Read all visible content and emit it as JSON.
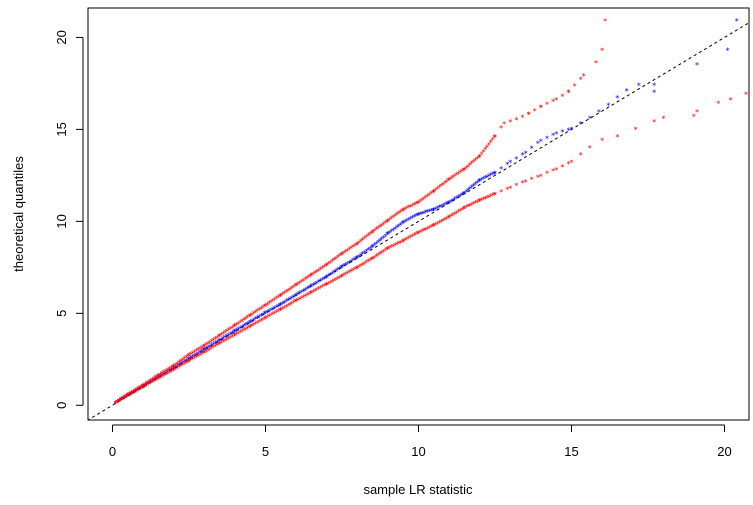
{
  "chart_data": {
    "type": "scatter",
    "title": "",
    "xlabel": "sample LR statistic",
    "ylabel": "theoretical quantiles",
    "xlim": [
      -0.8,
      20.8
    ],
    "ylim": [
      -0.8,
      21.6
    ],
    "xticks": [
      "0",
      "5",
      "10",
      "15",
      "20"
    ],
    "yticks": [
      "0",
      "5",
      "10",
      "15",
      "20"
    ],
    "marker": "*",
    "grid": false,
    "reference_line": {
      "style": "dashed",
      "color": "#000000",
      "from": [
        -1,
        -1
      ],
      "to": [
        21,
        21
      ]
    },
    "colors": {
      "blue": "#0000ff",
      "red": "#ff0000"
    },
    "series": [
      {
        "color": "#0000ff",
        "x": [
          0.1,
          0.5,
          1,
          1.5,
          2,
          2.5,
          3,
          3.5,
          4,
          4.5,
          5,
          5.5,
          6,
          6.5,
          7,
          7.5,
          8,
          8.5,
          9,
          9.5,
          10,
          10.5,
          11,
          11.5,
          12,
          12.5,
          13,
          13.5,
          14,
          14.5,
          15,
          15.3,
          15.6,
          15.9,
          16.2,
          16.5,
          16.8,
          17.2,
          17.7,
          17.7,
          19.1,
          20.1,
          20.4
        ],
        "y": [
          0.1,
          0.5,
          1,
          1.5,
          2,
          2.5,
          3,
          3.5,
          4,
          4.5,
          5,
          5.45,
          5.95,
          6.45,
          6.95,
          7.5,
          8.0,
          8.6,
          9.3,
          9.9,
          10.35,
          10.6,
          11.0,
          11.5,
          12.2,
          12.6,
          13.2,
          13.7,
          14.35,
          14.75,
          15.0,
          15.3,
          15.6,
          15.95,
          16.3,
          16.7,
          17.1,
          17.4,
          17.0,
          17.4,
          18.5,
          19.3,
          20.9
        ]
      },
      {
        "color": "#ff0000",
        "x": [
          0.1,
          0.5,
          1,
          1.5,
          2,
          2.5,
          3,
          3.5,
          4,
          4.5,
          5,
          5.5,
          6,
          6.5,
          7,
          7.5,
          8,
          8.5,
          9,
          9.5,
          10,
          10.5,
          11,
          11.5,
          12,
          12.5,
          12.8,
          13.2,
          13.6,
          14,
          14.5,
          14.9,
          15.4,
          15.8,
          16.0,
          16.1
        ],
        "y": [
          0.1,
          0.55,
          1.05,
          1.6,
          2.1,
          2.7,
          3.2,
          3.75,
          4.3,
          4.85,
          5.4,
          5.95,
          6.5,
          7.05,
          7.6,
          8.2,
          8.75,
          9.4,
          10.0,
          10.6,
          11.0,
          11.6,
          12.25,
          12.8,
          13.5,
          14.6,
          15.3,
          15.5,
          15.8,
          16.2,
          16.6,
          17.0,
          17.9,
          18.6,
          19.3,
          20.9
        ]
      },
      {
        "color": "#ff0000",
        "x": [
          0.1,
          0.5,
          1,
          1.5,
          2,
          2.5,
          3,
          3.5,
          4,
          4.5,
          5,
          5.5,
          6,
          6.5,
          7,
          7.5,
          8,
          8.5,
          9,
          9.5,
          10,
          10.5,
          11,
          11.5,
          12,
          12.5,
          13,
          13.5,
          14,
          14.5,
          15,
          15.3,
          15.6,
          16,
          16.5,
          17.1,
          17.7,
          18,
          19.0,
          19.1,
          19.8,
          20.2,
          20.7
        ],
        "y": [
          0.1,
          0.48,
          0.95,
          1.42,
          1.9,
          2.37,
          2.85,
          3.32,
          3.8,
          4.25,
          4.72,
          5.18,
          5.65,
          6.1,
          6.55,
          7.0,
          7.45,
          7.95,
          8.5,
          8.9,
          9.35,
          9.75,
          10.2,
          10.7,
          11.1,
          11.45,
          11.8,
          12.15,
          12.45,
          12.8,
          13.2,
          13.6,
          14.0,
          14.4,
          14.6,
          15.0,
          15.4,
          15.6,
          15.7,
          15.95,
          16.4,
          16.6,
          16.9
        ]
      }
    ]
  }
}
